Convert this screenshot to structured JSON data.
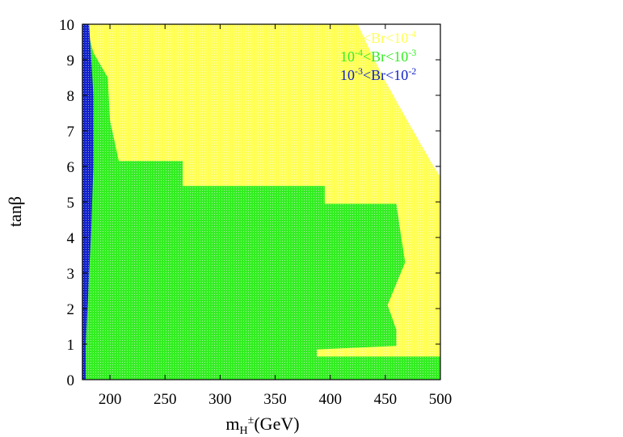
{
  "chart_data": {
    "type": "heatmap",
    "title": "",
    "xlabel": {
      "base": "m",
      "sub": "H",
      "sup": "±",
      "tail": "(GeV)"
    },
    "ylabel": "tanβ",
    "xlim": [
      175,
      500
    ],
    "ylim": [
      0,
      10
    ],
    "xticks": [
      200,
      250,
      300,
      350,
      400,
      450,
      500
    ],
    "yticks": [
      0,
      1,
      2,
      3,
      4,
      5,
      6,
      7,
      8,
      9,
      10
    ],
    "grid": false,
    "legend_position": "top-right",
    "series": [
      {
        "name": {
          "pre": "10",
          "preSup": "-5",
          "mid": "<Br<10",
          "postSup": "-4"
        },
        "color": "#ffff55",
        "region": [
          [
            175,
            0
          ],
          [
            545,
            0
          ],
          [
            545,
            4.1
          ],
          [
            518,
            4.8
          ],
          [
            492,
            6.1
          ],
          [
            468,
            7.4
          ],
          [
            450,
            8.4
          ],
          [
            437,
            9.2
          ],
          [
            425,
            10
          ],
          [
            175,
            10
          ]
        ]
      },
      {
        "name": {
          "pre": "10",
          "preSup": "-4",
          "mid": "<Br<10",
          "postSup": "-3"
        },
        "color": "#33ee22",
        "region": [
          [
            175,
            0
          ],
          [
            545,
            0
          ],
          [
            545,
            0.65
          ],
          [
            388,
            0.65
          ],
          [
            388,
            0.85
          ],
          [
            460,
            0.95
          ],
          [
            460,
            1.4
          ],
          [
            452,
            2.1
          ],
          [
            460,
            2.7
          ],
          [
            468,
            3.3
          ],
          [
            464,
            4.1
          ],
          [
            460,
            4.95
          ],
          [
            395,
            4.95
          ],
          [
            395,
            5.45
          ],
          [
            266,
            5.45
          ],
          [
            266,
            6.15
          ],
          [
            208,
            6.15
          ],
          [
            200,
            7.3
          ],
          [
            198,
            8.5
          ],
          [
            185,
            9.2
          ],
          [
            178,
            10
          ],
          [
            175,
            10
          ]
        ]
      },
      {
        "name": {
          "pre": "10",
          "preSup": "-3",
          "mid": "<Br<10",
          "postSup": "-2"
        },
        "color": "#1122cc",
        "region": [
          [
            175,
            0
          ],
          [
            178,
            0
          ],
          [
            178,
            1
          ],
          [
            180,
            2.2
          ],
          [
            181,
            3
          ],
          [
            183,
            4.2
          ],
          [
            184,
            5.2
          ],
          [
            185,
            6
          ],
          [
            185,
            8
          ],
          [
            183,
            9
          ],
          [
            181,
            10
          ],
          [
            175,
            10
          ]
        ]
      }
    ]
  }
}
